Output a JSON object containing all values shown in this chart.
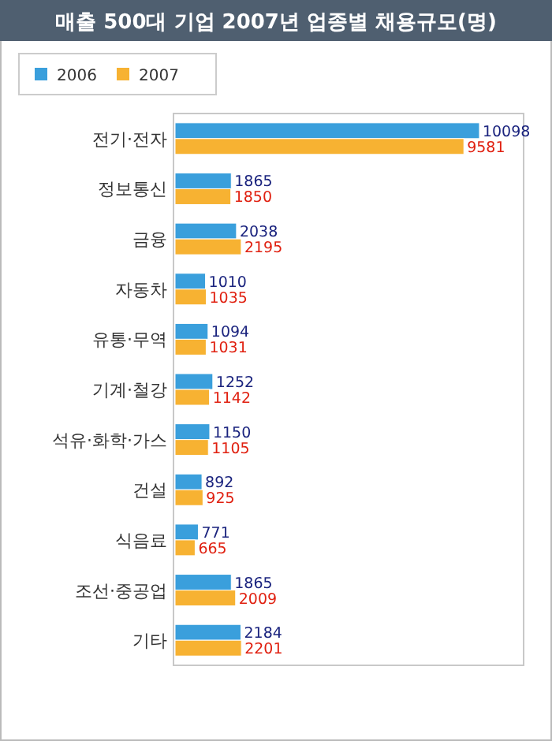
{
  "chart_data": {
    "type": "bar",
    "orientation": "horizontal",
    "title": "매출 500대 기업 2007년 업종별 채용규모(명)",
    "categories": [
      "전기·전자",
      "정보통신",
      "금융",
      "자동차",
      "유통·무역",
      "기계·철강",
      "석유·화학·가스",
      "건설",
      "식음료",
      "조선·중공업",
      "기타"
    ],
    "series": [
      {
        "name": "2006",
        "color": "#3a9fdc",
        "values": [
          10098,
          1865,
          2038,
          1010,
          1094,
          1252,
          1150,
          892,
          771,
          1865,
          2184
        ]
      },
      {
        "name": "2007",
        "color": "#f7b232",
        "values": [
          9581,
          1850,
          2195,
          1035,
          1031,
          1142,
          1105,
          925,
          665,
          2009,
          2201
        ]
      }
    ],
    "data_labels": true,
    "legend": "top left"
  }
}
